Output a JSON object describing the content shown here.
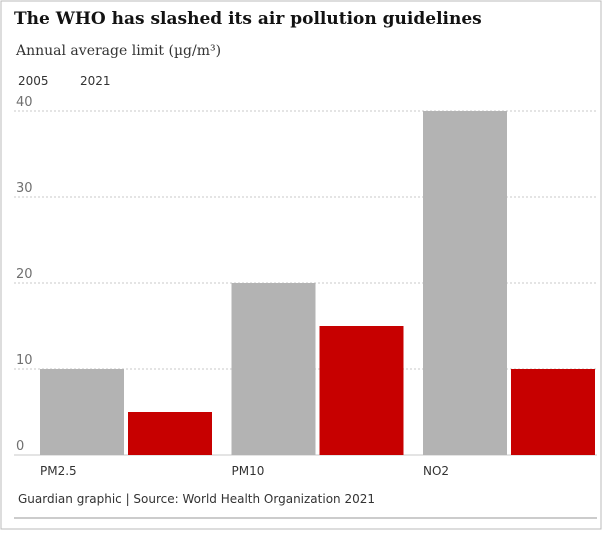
{
  "chart_data": {
    "type": "bar",
    "title": "The WHO has slashed its air pollution guidelines",
    "subtitle": "Annual average limit (µg/m³)",
    "categories": [
      "PM2.5",
      "PM10",
      "NO2"
    ],
    "series": [
      {
        "name": "2005",
        "color": "#b3b3b3",
        "values": [
          10,
          20,
          40
        ]
      },
      {
        "name": "2021",
        "color": "#c70000",
        "values": [
          5,
          15,
          10
        ]
      }
    ],
    "ylim": [
      0,
      40
    ],
    "yticks": [
      0,
      10,
      20,
      30,
      40
    ],
    "grid": true,
    "source": "Guardian graphic | Source: World Health Organization 2021"
  }
}
